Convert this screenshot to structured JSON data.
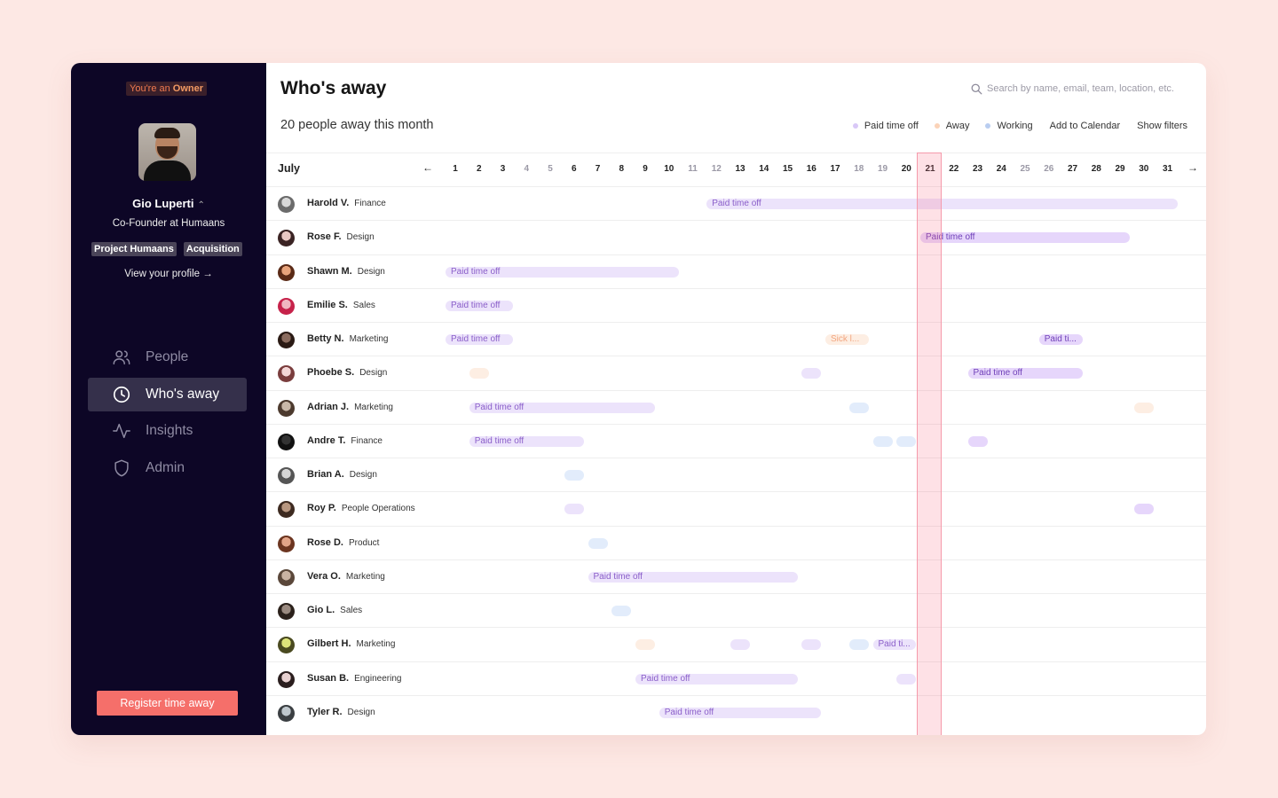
{
  "sidebar": {
    "owner_prefix": "You're an ",
    "owner_role": "Owner",
    "user_name": "Gio Luperti",
    "user_role": "Co-Founder at Humaans",
    "tags": [
      "Project Humaans",
      "Acquisition"
    ],
    "view_profile": "View your profile →",
    "nav": [
      {
        "label": "People",
        "icon": "people-icon"
      },
      {
        "label": "Who's away",
        "icon": "clock-icon",
        "active": true
      },
      {
        "label": "Insights",
        "icon": "activity-icon"
      },
      {
        "label": "Admin",
        "icon": "shield-icon"
      }
    ],
    "register_label": "Register time away"
  },
  "main": {
    "title": "Who's away",
    "search_placeholder": "Search by name, email, team, location, etc.",
    "subtitle": "20 people away this month",
    "legend": {
      "paid": "Paid time off",
      "away": "Away",
      "working": "Working",
      "add_calendar": "Add to Calendar",
      "show_filters": "Show filters"
    },
    "colors": {
      "paid": "#d9c8f7",
      "away": "#fbd3b8",
      "working": "#b9cdf0",
      "accent": "#f56f6a",
      "today": "#f59aab"
    },
    "month": "July",
    "prev_arrow": "←",
    "next_arrow": "→",
    "days": [
      "1",
      "2",
      "3",
      "4",
      "5",
      "6",
      "7",
      "8",
      "9",
      "10",
      "11",
      "12",
      "13",
      "14",
      "15",
      "16",
      "17",
      "18",
      "19",
      "20",
      "21",
      "22",
      "23",
      "24",
      "25",
      "26",
      "27",
      "28",
      "29",
      "30",
      "31"
    ],
    "weekend_days": [
      4,
      5,
      11,
      12,
      18,
      19,
      25,
      26
    ],
    "today": 21,
    "rows": [
      {
        "name": "Harold V.",
        "team": "Finance",
        "bars": [
          {
            "type": "paid",
            "start": 12,
            "end": 31,
            "label": "Paid time off"
          }
        ]
      },
      {
        "name": "Rose F.",
        "team": "Design",
        "bars": [
          {
            "type": "paid",
            "start": 21,
            "end": 29,
            "label": "Paid time off",
            "strong": true
          }
        ]
      },
      {
        "name": "Shawn M.",
        "team": "Design",
        "bars": [
          {
            "type": "paid",
            "start": 1,
            "end": 10,
            "label": "Paid time off"
          }
        ]
      },
      {
        "name": "Emilie S.",
        "team": "Sales",
        "bars": [
          {
            "type": "paid",
            "start": 1,
            "end": 3,
            "label": "Paid time off"
          }
        ]
      },
      {
        "name": "Betty N.",
        "team": "Marketing",
        "bars": [
          {
            "type": "paid",
            "start": 1,
            "end": 3,
            "label": "Paid time off"
          },
          {
            "type": "sick",
            "start": 17,
            "end": 18,
            "label": "Sick l..."
          },
          {
            "type": "paid",
            "start": 26,
            "end": 27,
            "label": "Paid ti...",
            "strong": true
          }
        ]
      },
      {
        "name": "Phoebe S.",
        "team": "Design",
        "bars": [
          {
            "type": "sick",
            "start": 2,
            "end": 2,
            "label": ""
          },
          {
            "type": "paid",
            "start": 16,
            "end": 16,
            "label": ""
          },
          {
            "type": "paid",
            "start": 23,
            "end": 27,
            "label": "Paid time off",
            "strong": true
          }
        ]
      },
      {
        "name": "Adrian J.",
        "team": "Marketing",
        "bars": [
          {
            "type": "paid",
            "start": 2,
            "end": 9,
            "label": "Paid time off"
          },
          {
            "type": "working",
            "start": 18,
            "end": 18,
            "label": ""
          },
          {
            "type": "sick",
            "start": 30,
            "end": 30,
            "label": ""
          }
        ]
      },
      {
        "name": "Andre T.",
        "team": "Finance",
        "bars": [
          {
            "type": "paid",
            "start": 2,
            "end": 6,
            "label": "Paid time off"
          },
          {
            "type": "working",
            "start": 19,
            "end": 19,
            "label": ""
          },
          {
            "type": "working",
            "start": 20,
            "end": 20,
            "label": ""
          },
          {
            "type": "paid",
            "start": 23,
            "end": 23,
            "label": "",
            "strong": true
          }
        ]
      },
      {
        "name": "Brian A.",
        "team": "Design",
        "bars": [
          {
            "type": "working",
            "start": 6,
            "end": 6,
            "label": ""
          }
        ]
      },
      {
        "name": "Roy P.",
        "team": "People Operations",
        "bars": [
          {
            "type": "paid",
            "start": 6,
            "end": 6,
            "label": ""
          },
          {
            "type": "paid",
            "start": 30,
            "end": 30,
            "label": "",
            "strong": true
          }
        ]
      },
      {
        "name": "Rose D.",
        "team": "Product",
        "bars": [
          {
            "type": "working",
            "start": 7,
            "end": 7,
            "label": ""
          }
        ]
      },
      {
        "name": "Vera O.",
        "team": "Marketing",
        "bars": [
          {
            "type": "paid",
            "start": 7,
            "end": 15,
            "label": "Paid time off"
          }
        ]
      },
      {
        "name": "Gio L.",
        "team": "Sales",
        "bars": [
          {
            "type": "working",
            "start": 8,
            "end": 8,
            "label": ""
          }
        ]
      },
      {
        "name": "Gilbert H.",
        "team": "Marketing",
        "bars": [
          {
            "type": "sick",
            "start": 9,
            "end": 9,
            "label": ""
          },
          {
            "type": "paid",
            "start": 13,
            "end": 13,
            "label": ""
          },
          {
            "type": "paid",
            "start": 16,
            "end": 16,
            "label": ""
          },
          {
            "type": "working",
            "start": 18,
            "end": 18,
            "label": ""
          },
          {
            "type": "paid",
            "start": 19,
            "end": 20,
            "label": "Paid ti..."
          }
        ]
      },
      {
        "name": "Susan B.",
        "team": "Engineering",
        "bars": [
          {
            "type": "paid",
            "start": 9,
            "end": 15,
            "label": "Paid time off"
          },
          {
            "type": "paid",
            "start": 20,
            "end": 20,
            "label": ""
          }
        ]
      },
      {
        "name": "Tyler R.",
        "team": "Design",
        "bars": [
          {
            "type": "paid",
            "start": 10,
            "end": 16,
            "label": "Paid time off"
          }
        ]
      }
    ]
  }
}
